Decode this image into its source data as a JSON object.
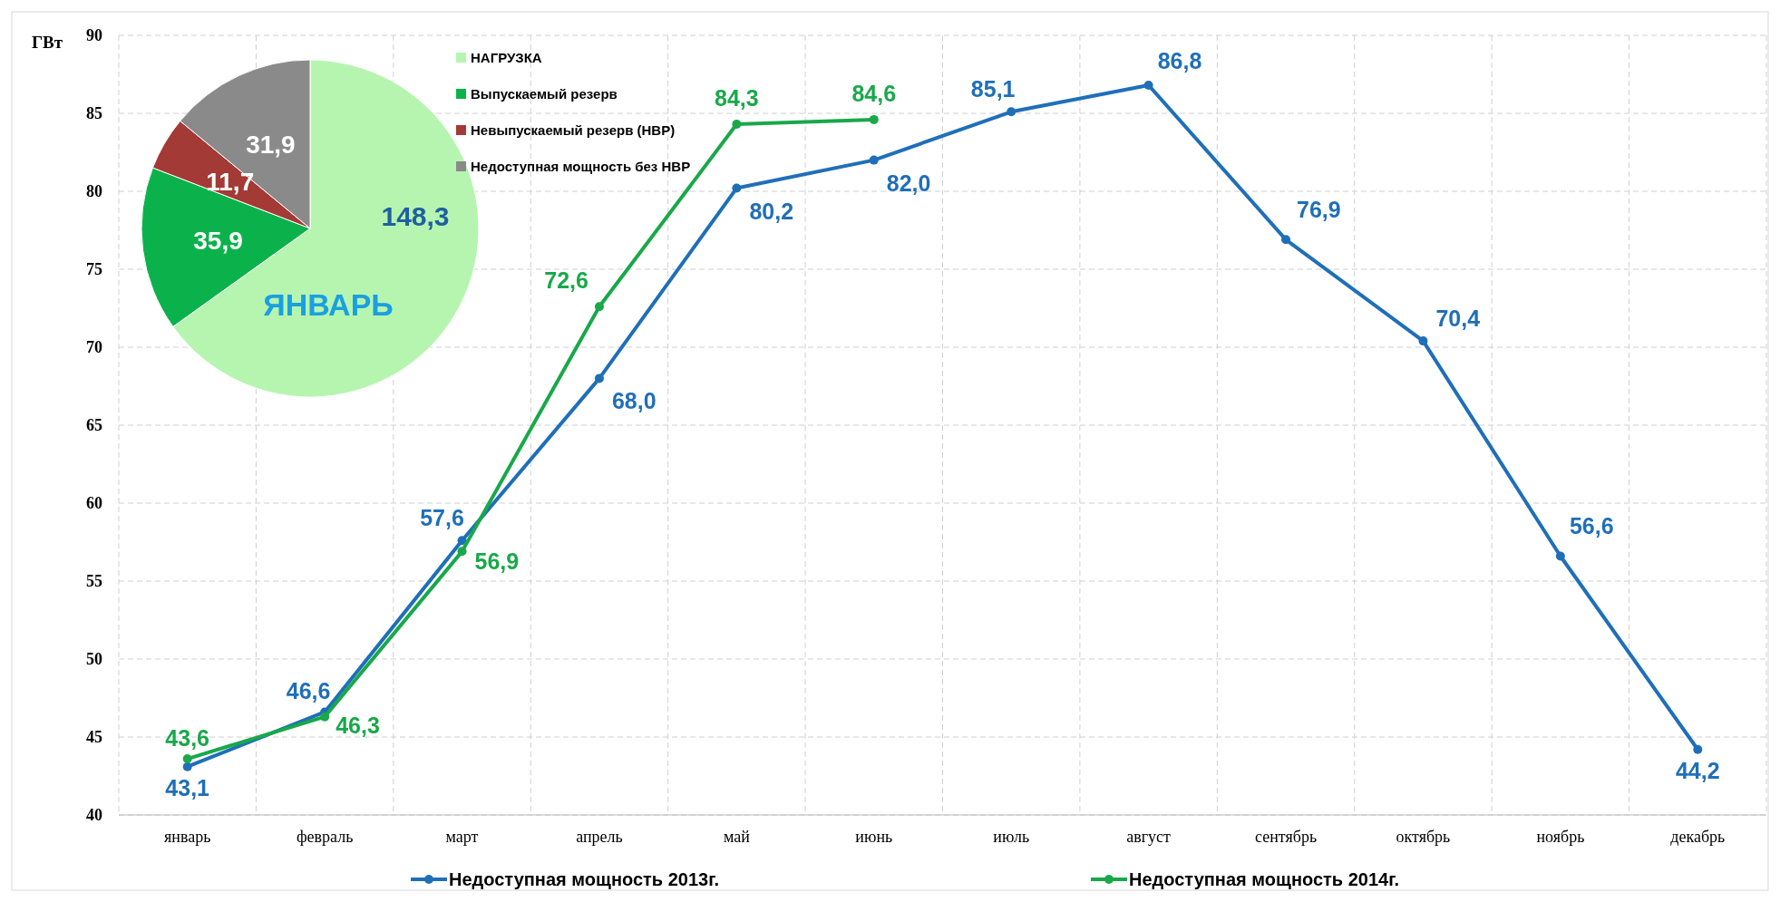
{
  "chart_data": [
    {
      "type": "line",
      "ylabel": "ГВт",
      "categories": [
        "январь",
        "февраль",
        "март",
        "апрель",
        "май",
        "июнь",
        "июль",
        "август",
        "сентябрь",
        "октябрь",
        "ноябрь",
        "декабрь"
      ],
      "series": [
        {
          "name": "Недоступная мощность 2013г.",
          "color": "#1f6fb8",
          "values": [
            43.1,
            46.6,
            57.6,
            68.0,
            80.2,
            82.0,
            85.1,
            86.8,
            76.9,
            70.4,
            56.6,
            44.2
          ],
          "value_labels": [
            "43,1",
            "46,6",
            "57,6",
            "68,0",
            "80,2",
            "82,0",
            "85,1",
            "86,8",
            "76,9",
            "70,4",
            "56,6",
            "44,2"
          ]
        },
        {
          "name": "Недоступная мощность 2014г.",
          "color": "#19a84a",
          "values": [
            43.6,
            46.3,
            56.9,
            72.6,
            84.3,
            84.6,
            null,
            null,
            null,
            null,
            null,
            null
          ],
          "value_labels": [
            "43,6",
            "46,3",
            "56,9",
            "72,6",
            "84,3",
            "84,6",
            null,
            null,
            null,
            null,
            null,
            null
          ]
        }
      ],
      "ylim": [
        40,
        90
      ],
      "yticks": [
        40,
        45,
        50,
        55,
        60,
        65,
        70,
        75,
        80,
        85,
        90
      ],
      "grid": true,
      "legend": "bottom",
      "marker": "circle"
    },
    {
      "type": "pie",
      "title": "ЯНВАРЬ",
      "categories": [
        "НАГРУЗКА",
        "Выпускаемый резерв",
        "Невыпускаемый резерв (НВР)",
        "Недоступная мощность без НВР"
      ],
      "values": [
        148.3,
        35.9,
        11.7,
        31.9
      ],
      "value_labels": [
        "148,3",
        "35,9",
        "11,7",
        "31,9"
      ],
      "colors": [
        "#b6f5b0",
        "#0bb24c",
        "#a33a36",
        "#8a8a8a"
      ],
      "legend": "top right"
    }
  ]
}
